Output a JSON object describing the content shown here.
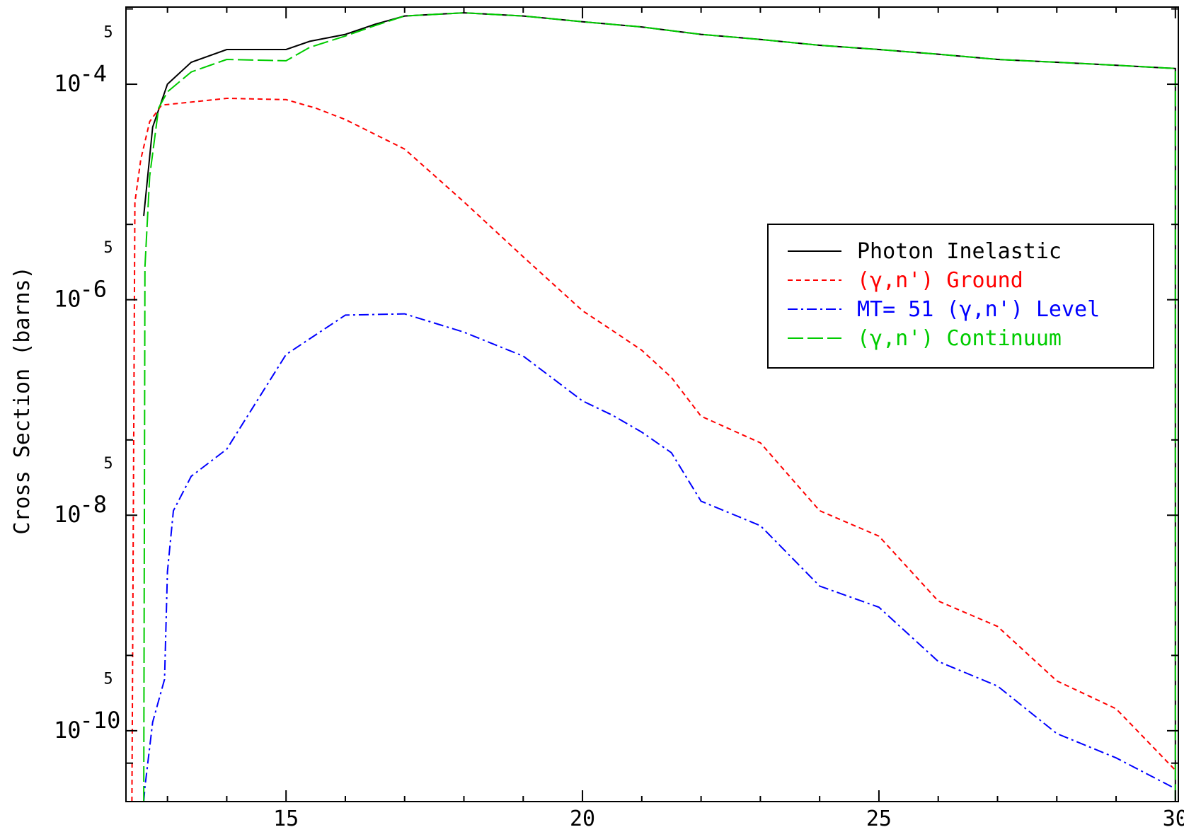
{
  "chart_data": {
    "type": "line",
    "ylabel": "Cross Section (barns)",
    "xlabel": "",
    "title": "",
    "xlim": [
      12.3,
      30.05
    ],
    "ylim": [
      2.2e-11,
      0.00052
    ],
    "yscale": "log",
    "x_ticks": [
      15,
      20,
      25,
      30
    ],
    "x_tick_labels": [
      "15",
      "20",
      "25",
      "30"
    ],
    "y_decade_ticks": [
      {
        "exp": "-4",
        "value": 0.0001
      },
      {
        "exp": "-6",
        "value": 1e-06
      },
      {
        "exp": "-8",
        "value": 1e-08
      },
      {
        "exp": "-10",
        "value": 1e-10
      }
    ],
    "y_decade_base": "10",
    "y_five_label": "5",
    "y_five_ticks": [
      0.0005,
      5e-06,
      5e-08,
      5e-10
    ],
    "y_five_ticks_unlabeled": [
      5e-11
    ],
    "legend_position": "right",
    "series": [
      {
        "name": "Photon Inelastic",
        "color": "#000000",
        "dash": "",
        "x": [
          12.6,
          12.75,
          13.0,
          13.4,
          14.0,
          15.0,
          15.4,
          16.0,
          16.5,
          17.0,
          18.0,
          19.0,
          20.0,
          21.0,
          22.0,
          23.0,
          24.0,
          25.0,
          26.0,
          27.0,
          28.0,
          29.0,
          30.0,
          30.0
        ],
        "y": [
          6e-06,
          4e-05,
          0.0001,
          0.00016,
          0.00021,
          0.00021,
          0.00025,
          0.00029,
          0.00036,
          0.00043,
          0.00046,
          0.00043,
          0.00038,
          0.00034,
          0.00029,
          0.00026,
          0.00023,
          0.00021,
          0.00019,
          0.00017,
          0.00016,
          0.00015,
          0.00014,
          2.2e-11
        ]
      },
      {
        "name": "(γ,n') Ground",
        "color": "#ff0000",
        "dash": "7,5",
        "x": [
          12.4,
          12.45,
          12.55,
          12.7,
          12.9,
          14.0,
          15.0,
          15.5,
          16.0,
          17.0,
          18.0,
          19.0,
          20.0,
          20.5,
          21.0,
          21.5,
          22.0,
          23.0,
          24.0,
          25.0,
          26.0,
          27.0,
          28.0,
          29.0,
          30.0
        ],
        "y": [
          2.2e-11,
          8e-06,
          2e-05,
          4.5e-05,
          6.4e-05,
          7.4e-05,
          7.2e-05,
          6e-05,
          4.7e-05,
          2.5e-05,
          8.1e-06,
          2.5e-06,
          7.9e-07,
          5.2e-07,
          3.4e-07,
          1.9e-07,
          8.3e-08,
          4.7e-08,
          1.1e-08,
          6.4e-09,
          1.6e-09,
          9.3e-10,
          2.9e-10,
          1.6e-10,
          4.3e-11
        ]
      },
      {
        "name": "MT= 51 (γ,n') Level",
        "color": "#0000ff",
        "dash": "14,5,3,5",
        "x": [
          12.6,
          12.62,
          12.75,
          12.95,
          13.0,
          13.1,
          13.4,
          14.0,
          15.0,
          16.0,
          17.0,
          18.0,
          19.0,
          20.0,
          20.5,
          21.0,
          21.5,
          22.0,
          23.0,
          24.0,
          25.0,
          26.0,
          27.0,
          28.0,
          29.0,
          30.0
        ],
        "y": [
          2.2e-11,
          3e-11,
          1.2e-10,
          3e-10,
          3e-09,
          1.1e-08,
          2.3e-08,
          4.1e-08,
          3.1e-07,
          7.2e-07,
          7.4e-07,
          5e-07,
          3e-07,
          1.15e-07,
          8.5e-08,
          5.9e-08,
          3.8e-08,
          1.35e-08,
          8e-09,
          2.2e-09,
          1.4e-09,
          4.4e-10,
          2.6e-10,
          9.4e-11,
          5.6e-11,
          2.9e-11
        ]
      },
      {
        "name": "(γ,n') Continuum",
        "color": "#00cc00",
        "dash": "22,6",
        "x": [
          12.6,
          12.62,
          12.7,
          12.85,
          13.0,
          13.4,
          14.0,
          15.0,
          15.4,
          16.0,
          16.5,
          17.0,
          18.0,
          19.0,
          20.0,
          21.0,
          22.0,
          23.0,
          24.0,
          25.0,
          26.0,
          27.0,
          28.0,
          29.0,
          30.0,
          30.0
        ],
        "y": [
          2.2e-11,
          2e-06,
          1.4e-05,
          6e-05,
          8.5e-05,
          0.00013,
          0.00017,
          0.000165,
          0.00022,
          0.00028,
          0.00035,
          0.00043,
          0.00046,
          0.00043,
          0.00038,
          0.00034,
          0.00029,
          0.00026,
          0.00023,
          0.00021,
          0.00019,
          0.00017,
          0.00016,
          0.00015,
          0.00014,
          2.2e-11
        ]
      }
    ]
  }
}
